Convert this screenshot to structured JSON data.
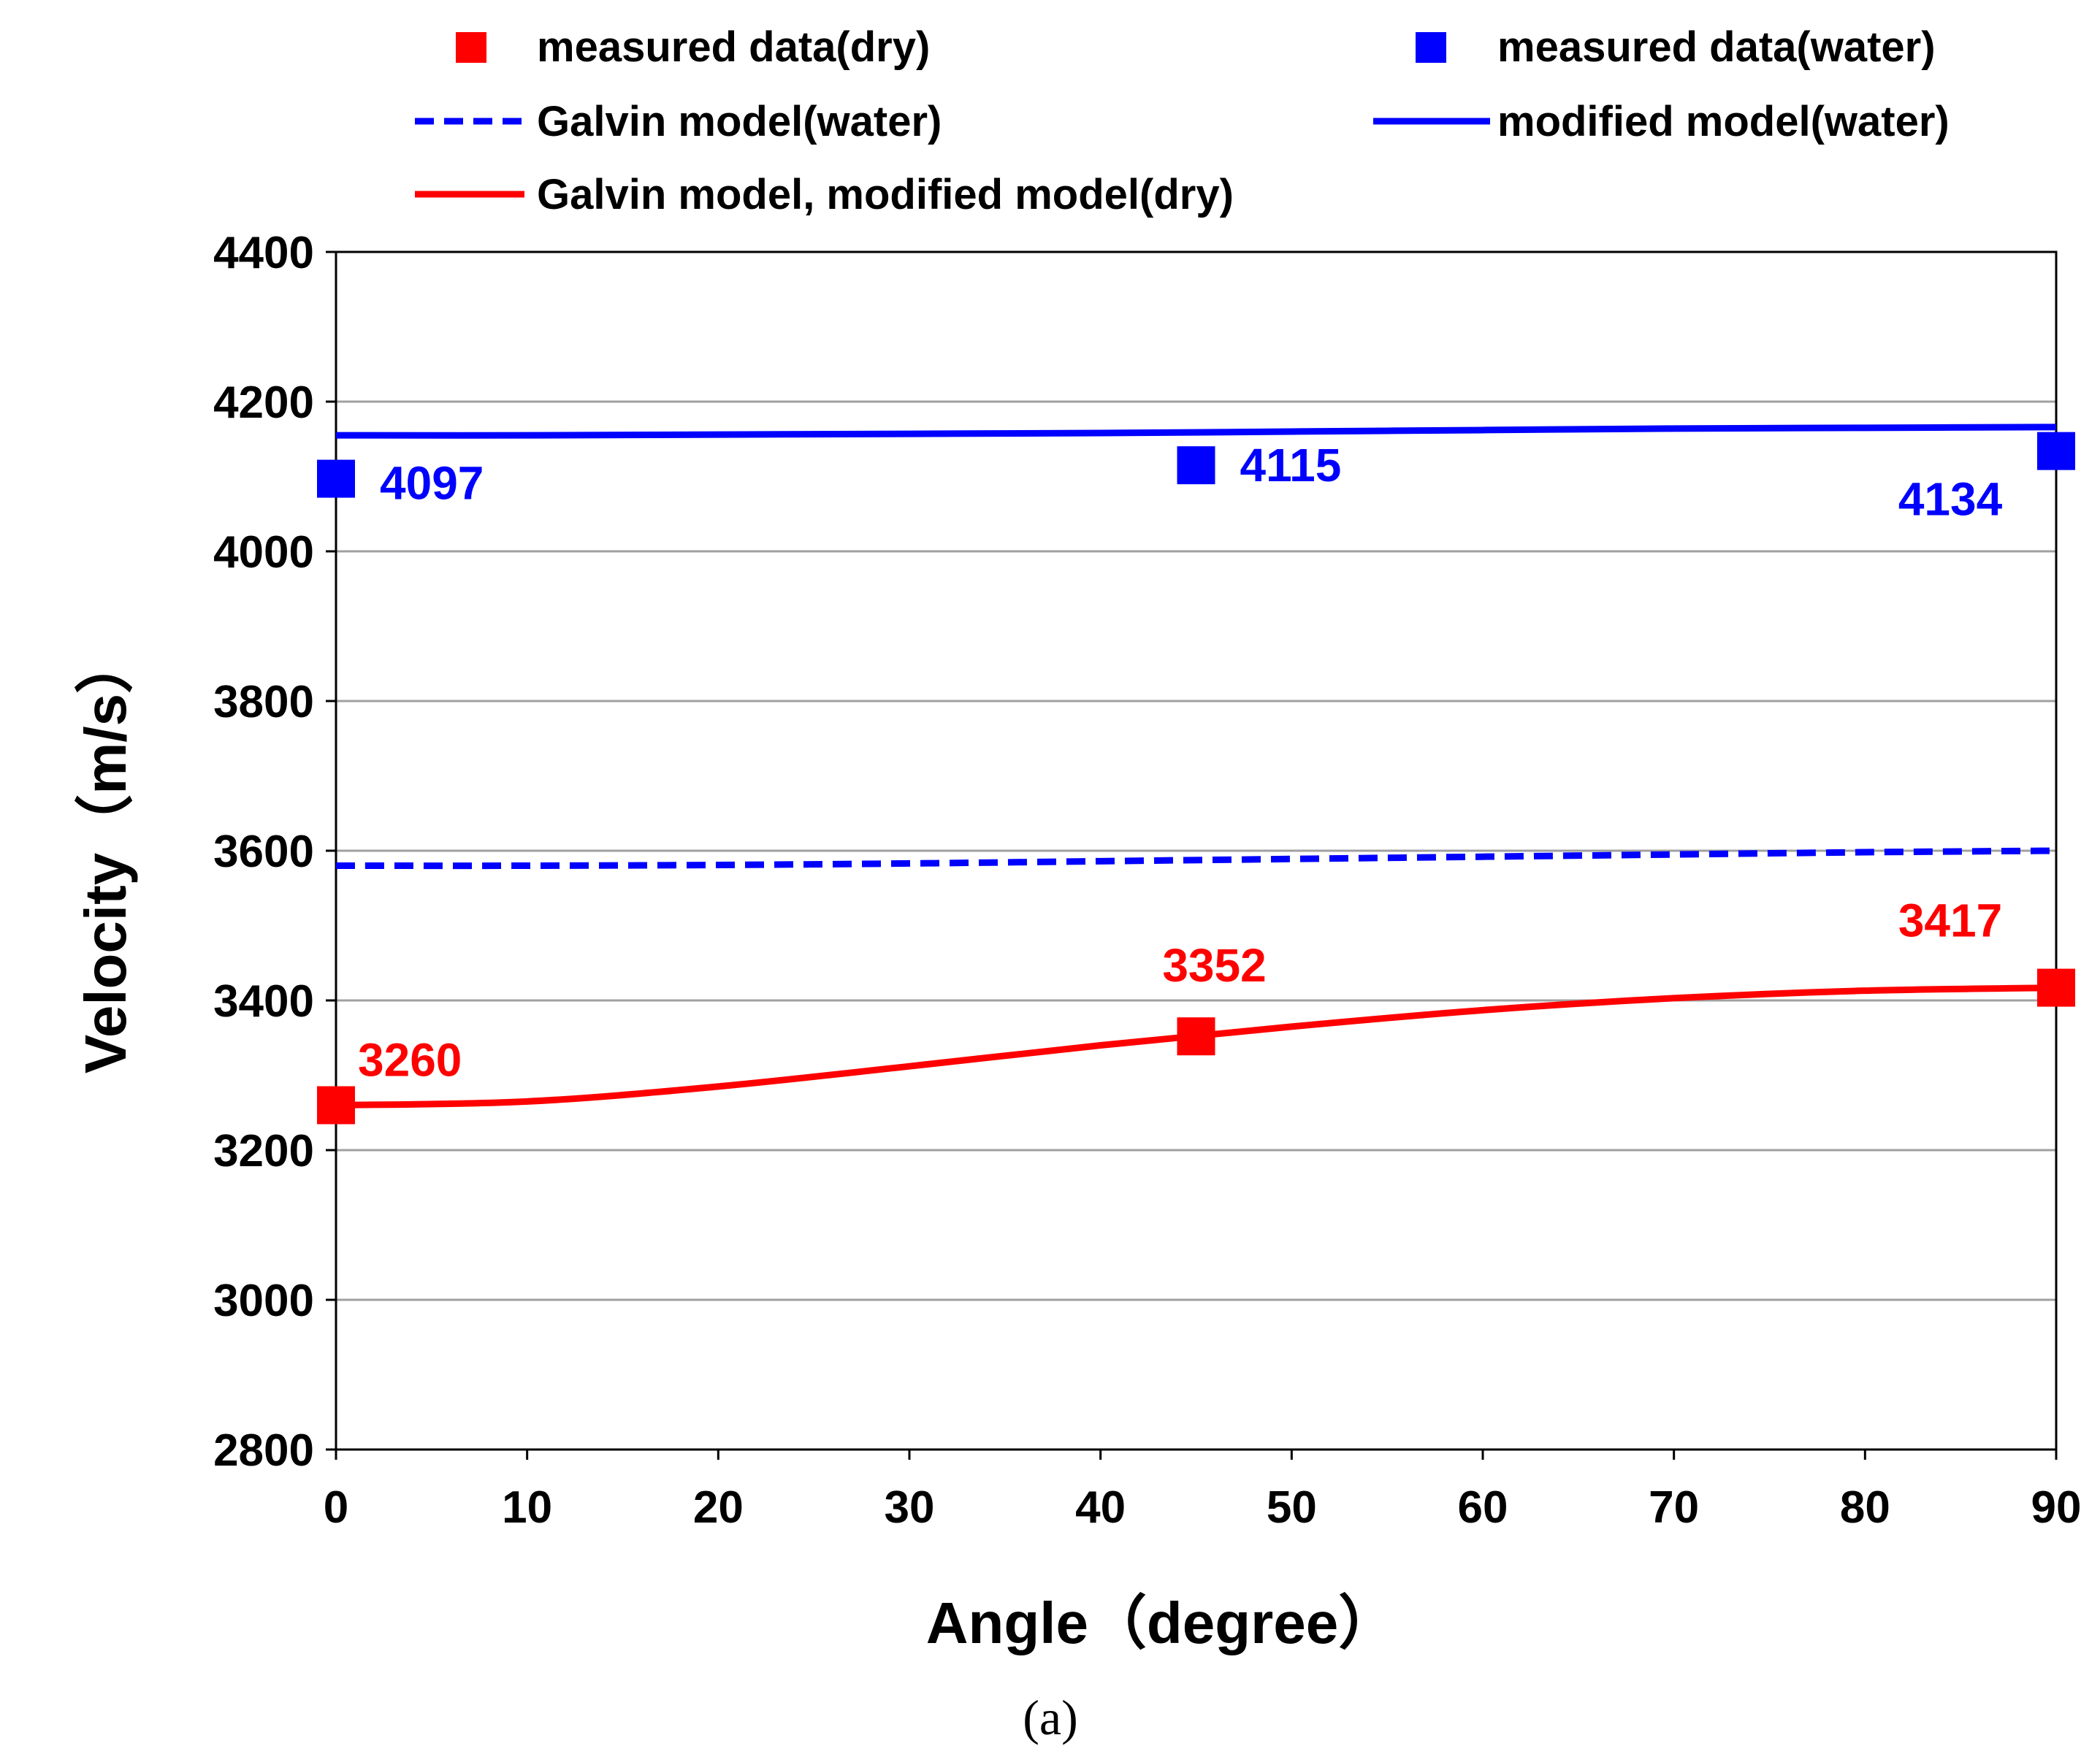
{
  "chart_data": {
    "type": "line",
    "title": "",
    "xlabel": "Angle（degree）",
    "ylabel": "Velocity（m/s）",
    "xlim": [
      0,
      90
    ],
    "ylim": [
      2800,
      4400
    ],
    "xticks": [
      0,
      10,
      20,
      30,
      40,
      50,
      60,
      70,
      80,
      90
    ],
    "yticks": [
      2800,
      3000,
      3200,
      3400,
      3600,
      3800,
      4000,
      4200,
      4400
    ],
    "grid": "horizontal",
    "legend_position": "top",
    "series": [
      {
        "name": "measured data(dry)",
        "kind": "scatter",
        "marker": "square",
        "color": "#ff0000",
        "x": [
          0,
          45,
          90
        ],
        "y": [
          3260,
          3352,
          3417
        ],
        "labels": [
          "3260",
          "3352",
          "3417"
        ]
      },
      {
        "name": "measured data(water)",
        "kind": "scatter",
        "marker": "square",
        "color": "#0000ff",
        "x": [
          0,
          45,
          90
        ],
        "y": [
          4097,
          4115,
          4134
        ],
        "labels": [
          "4097",
          "4115",
          "4134"
        ]
      },
      {
        "name": "Galvin model(water)",
        "kind": "line",
        "style": "dashed",
        "color": "#0000ff",
        "x": [
          0,
          10,
          20,
          30,
          40,
          50,
          60,
          70,
          80,
          90
        ],
        "y": [
          3580,
          3580,
          3581,
          3583,
          3586,
          3589,
          3592,
          3595,
          3598,
          3600
        ]
      },
      {
        "name": "modified model(water)",
        "kind": "line",
        "style": "solid",
        "color": "#0000ff",
        "x": [
          0,
          10,
          20,
          30,
          40,
          50,
          60,
          70,
          80,
          90
        ],
        "y": [
          4155,
          4155,
          4156,
          4157,
          4158,
          4160,
          4162,
          4164,
          4165,
          4166
        ]
      },
      {
        "name": "Galvin model, modified model(dry)",
        "kind": "line",
        "style": "solid",
        "color": "#ff0000",
        "x": [
          0,
          10,
          20,
          30,
          40,
          50,
          60,
          70,
          80,
          90
        ],
        "y": [
          3260,
          3265,
          3285,
          3312,
          3340,
          3365,
          3387,
          3403,
          3413,
          3417
        ]
      }
    ]
  },
  "caption": "(a)"
}
